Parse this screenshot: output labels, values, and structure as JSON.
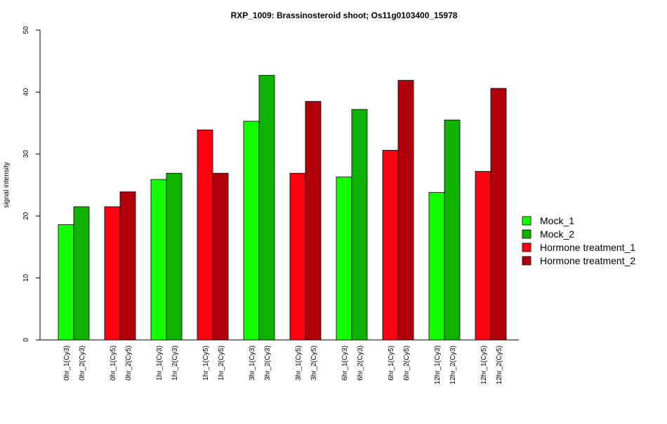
{
  "chart_data": {
    "type": "bar",
    "title": "RXP_1009: Brassinosteroid shoot; Os11g0103400_15978",
    "xlabel": "",
    "ylabel": "signal intensity",
    "ylim": [
      0,
      50
    ],
    "yticks": [
      0,
      10,
      20,
      30,
      40,
      50
    ],
    "grid": false,
    "legend_position": "right",
    "categories": [
      "0hr_1(Cy3)",
      "0hr_2(Cy3)",
      "0hr_1(Cy5)",
      "0hr_2(Cy5)",
      "1hr_1(Cy3)",
      "1hr_2(Cy3)",
      "1hr_1(Cy5)",
      "1hr_2(Cy5)",
      "3hr_1(Cy3)",
      "3hr_2(Cy3)",
      "3hr_1(Cy5)",
      "3hr_2(Cy5)",
      "6hr_1(Cy3)",
      "6hr_2(Cy3)",
      "6hr_1(Cy5)",
      "6hr_2(Cy5)",
      "12hr_1(Cy3)",
      "12hr_2(Cy3)",
      "12hr_1(Cy5)",
      "12hr_2(Cy5)"
    ],
    "values": [
      18.6,
      21.5,
      21.5,
      23.9,
      25.9,
      26.9,
      33.9,
      26.9,
      35.3,
      42.7,
      26.9,
      38.5,
      26.3,
      37.2,
      30.6,
      41.9,
      23.8,
      35.5,
      27.2,
      40.6
    ],
    "bar_series": [
      "Mock_1",
      "Mock_2",
      "Hormone treatment_1",
      "Hormone treatment_2",
      "Mock_1",
      "Mock_2",
      "Hormone treatment_1",
      "Hormone treatment_2",
      "Mock_1",
      "Mock_2",
      "Hormone treatment_1",
      "Hormone treatment_2",
      "Mock_1",
      "Mock_2",
      "Hormone treatment_1",
      "Hormone treatment_2",
      "Mock_1",
      "Mock_2",
      "Hormone treatment_1",
      "Hormone treatment_2"
    ],
    "series": [
      {
        "name": "Mock_1",
        "color": "#13ff00"
      },
      {
        "name": "Mock_2",
        "color": "#0db300"
      },
      {
        "name": "Hormone treatment_1",
        "color": "#ff0010"
      },
      {
        "name": "Hormone treatment_2",
        "color": "#b2000b"
      }
    ]
  }
}
